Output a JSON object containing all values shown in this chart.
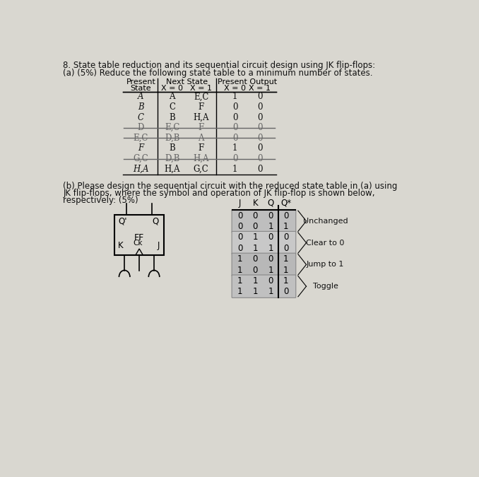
{
  "title": "8. State table reduction and its sequential circuit design using JK flip-flops:",
  "part_a": "(a) (5%) Reduce the following state table to a minimum number of states.",
  "part_b_1": "(b) Please design the sequential circuit with the reduced state table in (a) using",
  "part_b_2": "JK flip-flops, where the symbol and operation of JK flip-flop is shown below,",
  "part_b_3": "respectively: (5%)",
  "states": [
    "A",
    "B",
    "C",
    "D",
    "E,C",
    "F",
    "G,C",
    "H,A"
  ],
  "next_x0": [
    "A",
    "C",
    "B",
    "E,C",
    "D,B",
    "B",
    "D,B",
    "H,A"
  ],
  "next_x1": [
    "E,C",
    "F",
    "H,A",
    "F",
    "A",
    "F",
    "H,A",
    "G,C"
  ],
  "out_x0": [
    "1",
    "0",
    "0",
    "0",
    "0",
    "1",
    "0",
    "1"
  ],
  "out_x1": [
    "0",
    "0",
    "0",
    "0",
    "0",
    "0",
    "0",
    "0"
  ],
  "struck": [
    3,
    4,
    6
  ],
  "jk_rows": [
    [
      "0",
      "0",
      "0",
      "0"
    ],
    [
      "0",
      "0",
      "1",
      "1"
    ],
    [
      "0",
      "1",
      "0",
      "0"
    ],
    [
      "0",
      "1",
      "1",
      "0"
    ],
    [
      "1",
      "0",
      "0",
      "1"
    ],
    [
      "1",
      "0",
      "1",
      "1"
    ],
    [
      "1",
      "1",
      "0",
      "1"
    ],
    [
      "1",
      "1",
      "1",
      "0"
    ]
  ],
  "jk_groups": [
    {
      "rows": [
        0,
        1
      ],
      "label": "Unchanged"
    },
    {
      "rows": [
        2,
        3
      ],
      "label": "Clear to 0"
    },
    {
      "rows": [
        4,
        5
      ],
      "label": "Jump to 1"
    },
    {
      "rows": [
        6,
        7
      ],
      "label": "Toggle"
    }
  ],
  "group_colors": [
    "#c8c8c8",
    "#d0d0d0",
    "#c0c0c0",
    "#cccccc"
  ],
  "paper_color": "#d9d7d0"
}
